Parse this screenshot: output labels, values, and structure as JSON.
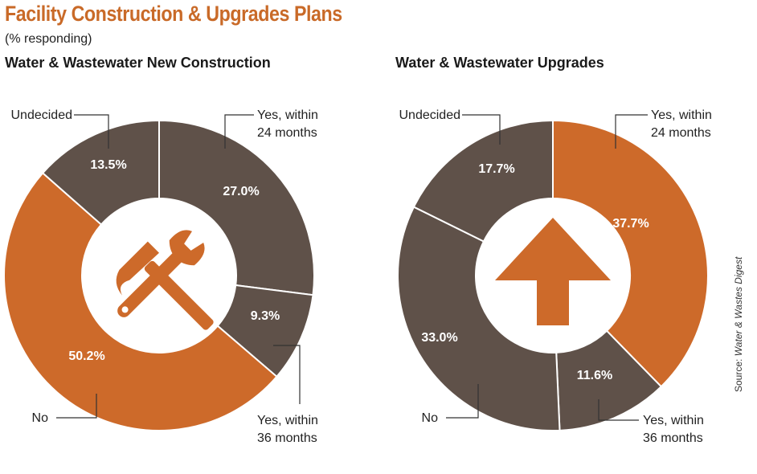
{
  "title": "Facility Construction & Upgrades Plans",
  "subtitle": "(% responding)",
  "source_prefix": "Source:",
  "source_name": "Water & Wastes Digest",
  "colors": {
    "orange": "#cd6a2a",
    "brown": "#5f5149",
    "title": "#c96a28"
  },
  "chart_data": [
    {
      "type": "pie",
      "title": "Water & Wastewater New Construction",
      "center_icon": "hammer-wrench-icon",
      "slices": [
        {
          "label": "Yes, within 24 months",
          "value": 27.0,
          "value_label": "27.0%",
          "color": "#5f5149"
        },
        {
          "label": "Yes, within 36 months",
          "value": 9.3,
          "value_label": "9.3%",
          "color": "#5f5149"
        },
        {
          "label": "No",
          "value": 50.2,
          "value_label": "50.2%",
          "color": "#cd6a2a"
        },
        {
          "label": "Undecided",
          "value": 13.5,
          "value_label": "13.5%",
          "color": "#5f5149"
        }
      ]
    },
    {
      "type": "pie",
      "title": "Water & Wastewater Upgrades",
      "center_icon": "up-arrow-icon",
      "slices": [
        {
          "label": "Yes, within 24 months",
          "value": 37.7,
          "value_label": "37.7%",
          "color": "#cd6a2a"
        },
        {
          "label": "Yes, within 36 months",
          "value": 11.6,
          "value_label": "11.6%",
          "color": "#5f5149"
        },
        {
          "label": "No",
          "value": 33.0,
          "value_label": "33.0%",
          "color": "#5f5149"
        },
        {
          "label": "Undecided",
          "value": 17.7,
          "value_label": "17.7%",
          "color": "#5f5149"
        }
      ]
    }
  ]
}
